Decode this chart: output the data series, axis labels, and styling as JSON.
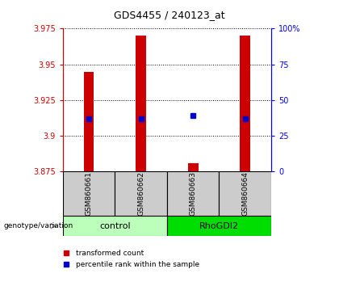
{
  "title": "GDS4455 / 240123_at",
  "samples": [
    "GSM860661",
    "GSM860662",
    "GSM860663",
    "GSM860664"
  ],
  "red_values": [
    3.945,
    3.97,
    3.881,
    3.97
  ],
  "blue_values": [
    3.912,
    3.912,
    3.914,
    3.912
  ],
  "y_min": 3.875,
  "y_max": 3.975,
  "y_ticks": [
    3.875,
    3.9,
    3.925,
    3.95,
    3.975
  ],
  "right_y_ticks": [
    0,
    25,
    50,
    75,
    100
  ],
  "right_y_labels": [
    "0",
    "25",
    "50",
    "75",
    "100%"
  ],
  "bar_color": "#cc0000",
  "blue_color": "#0000cc",
  "genotype_label": "genotype/variation",
  "legend_red": "transformed count",
  "legend_blue": "percentile rank within the sample",
  "sample_box_color": "#cccccc",
  "control_color": "#bbffbb",
  "rhodgi2_color": "#00dd00",
  "axis_left_color": "#cc0000",
  "axis_right_color": "#0000ff",
  "x_positions": [
    0.5,
    1.5,
    2.5,
    3.5
  ]
}
